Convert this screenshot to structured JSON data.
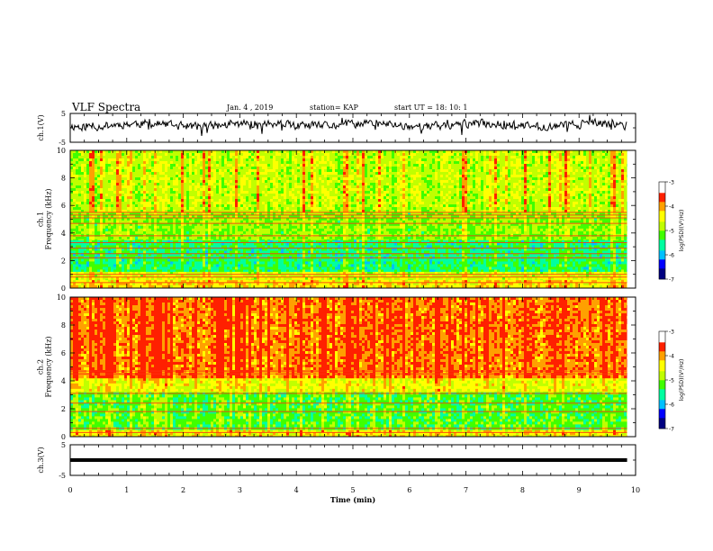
{
  "header": {
    "title": "VLF Spectra",
    "date": "Jan. 4 , 2019",
    "station": "station= KAP",
    "start": "start UT = 18: 10: 1"
  },
  "chart_data": [
    {
      "type": "line",
      "title": "",
      "ylabel": "ch.1(V)",
      "ylim": [
        -5,
        5
      ],
      "yticks": [
        "5",
        "-5"
      ],
      "x_range": [
        0,
        10
      ],
      "data_end_min": 9.85,
      "description_note": "",
      "baseline": 1.0,
      "amplitude": 1.3,
      "noise_seed": 11
    },
    {
      "type": "heatmap",
      "ylabel": "ch.1\nFrequency (kHz)",
      "ylim": [
        0,
        10
      ],
      "yticks": [
        "0",
        "2",
        "4",
        "6",
        "8",
        "10"
      ],
      "x_range": [
        0,
        9.85
      ],
      "colorbar": {
        "label": "log(PSD)(V²/Hz)",
        "range": [
          -7,
          -3
        ],
        "ticks": [
          "-3",
          "-4",
          "-5",
          "-6",
          "-7"
        ],
        "colors": [
          "#000080",
          "#0000ff",
          "#00c0ff",
          "#00ffa0",
          "#40ff00",
          "#c0ff00",
          "#ffff00",
          "#ffa000",
          "#ff2000",
          "#ffffff"
        ]
      },
      "bands": [
        {
          "f0": 0.0,
          "f1": 0.6,
          "level": -4.2
        },
        {
          "f0": 0.6,
          "f1": 1.2,
          "level": -4.6
        },
        {
          "f0": 1.2,
          "f1": 3.5,
          "level": -5.6
        },
        {
          "f0": 3.5,
          "f1": 5.5,
          "level": -5.0
        },
        {
          "f0": 5.5,
          "f1": 10.0,
          "level": -4.7
        }
      ],
      "lines_khz": [
        0.4,
        0.8,
        1.0,
        2.2,
        2.5,
        2.9,
        3.3,
        3.8,
        4.7,
        5.1,
        5.3,
        5.5
      ]
    },
    {
      "type": "heatmap",
      "ylabel": "ch.2\nFrequency (kHz)",
      "ylim": [
        0,
        10
      ],
      "yticks": [
        "0",
        "2",
        "4",
        "6",
        "8",
        "10"
      ],
      "x_range": [
        0,
        9.85
      ],
      "colorbar": {
        "label": "log(PSD)(V²/Hz)",
        "range": [
          -7,
          -3
        ],
        "ticks": [
          "-3",
          "-4",
          "-5",
          "-6",
          "-7"
        ],
        "colors": [
          "#000080",
          "#0000ff",
          "#00c0ff",
          "#00ffa0",
          "#40ff00",
          "#c0ff00",
          "#ffff00",
          "#ffa000",
          "#ff2000",
          "#ffffff"
        ]
      },
      "bands": [
        {
          "f0": 0.0,
          "f1": 0.5,
          "level": -4.3
        },
        {
          "f0": 0.5,
          "f1": 3.2,
          "level": -5.3
        },
        {
          "f0": 3.2,
          "f1": 4.2,
          "level": -4.4
        },
        {
          "f0": 4.2,
          "f1": 10.0,
          "level": -3.6
        }
      ],
      "lines_khz": [
        0.3,
        0.6,
        1.8,
        2.4,
        3.1,
        4.5,
        4.7
      ]
    },
    {
      "type": "line",
      "ylabel": "ch.3(V)",
      "ylim": [
        -5,
        5
      ],
      "yticks": [
        "5",
        "-5"
      ],
      "x_range": [
        0,
        10
      ],
      "data_end_min": 9.85,
      "constant_value": 0.0
    }
  ],
  "x_axis": {
    "label": "Time (min)",
    "range": [
      0,
      10
    ],
    "ticks": [
      "0",
      "1",
      "2",
      "3",
      "4",
      "5",
      "6",
      "7",
      "8",
      "9",
      "10"
    ]
  }
}
